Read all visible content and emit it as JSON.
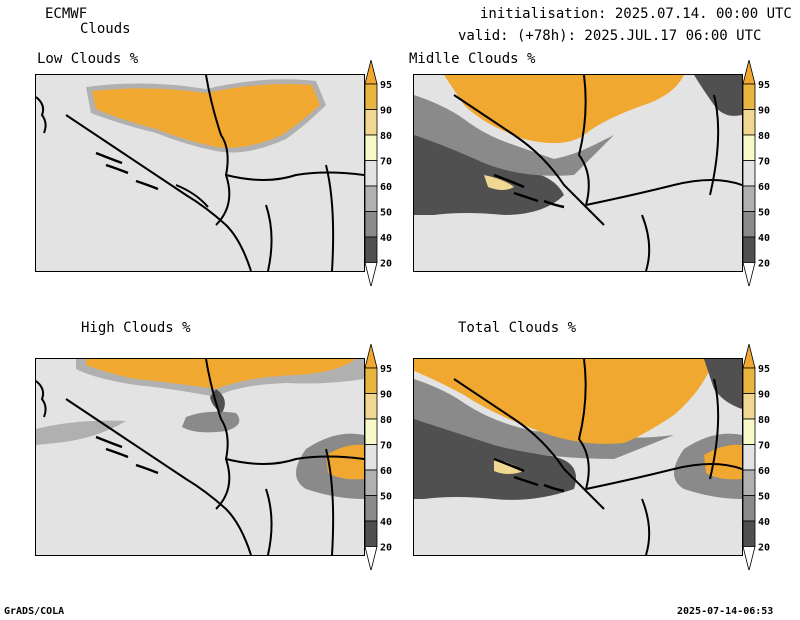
{
  "header": {
    "model": "ECMWF",
    "product": "Clouds",
    "initialisation": "initialisation: 2025.07.14. 00:00 UTC",
    "valid": "valid: (+78h): 2025.JUL.17 06:00 UTC"
  },
  "panels": {
    "low": {
      "title": "Low Clouds %"
    },
    "middle": {
      "title": "Midlle Clouds %"
    },
    "high": {
      "title": "High Clouds %"
    },
    "total": {
      "title": "Total Clouds %"
    }
  },
  "colorbar": {
    "labels": [
      "95",
      "90",
      "80",
      "70",
      "60",
      "50",
      "40",
      "20"
    ],
    "colors": {
      "c95": "#f0a830",
      "c90": "#e8b640",
      "c80": "#f0d890",
      "c70": "#f8f8c8",
      "c60": "#e3e3e3",
      "c50": "#b0b0b0",
      "c40": "#8a8a8a",
      "c20": "#505050",
      "c0": "#ffffff"
    }
  },
  "footer": {
    "left": "GrADS/COLA",
    "right": "2025-07-14-06:53"
  }
}
